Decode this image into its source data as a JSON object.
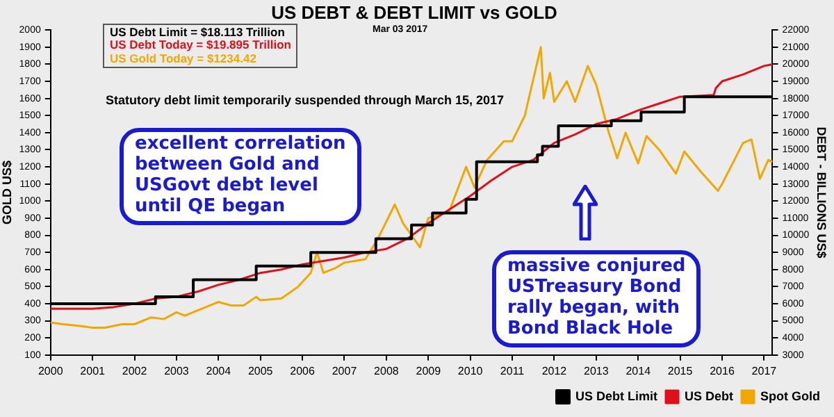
{
  "chart_data": {
    "type": "line",
    "title": "US DEBT & DEBT LIMIT vs GOLD",
    "ylabel": "GOLD US$",
    "y2label": "DEBT - BILLIONS US$",
    "xlim": [
      2000,
      2017.2
    ],
    "xticks": [
      2000,
      2001,
      2002,
      2003,
      2004,
      2005,
      2006,
      2007,
      2008,
      2009,
      2010,
      2011,
      2012,
      2013,
      2014,
      2015,
      2016,
      2017
    ],
    "ylim": [
      100,
      2000
    ],
    "yticks": [
      100,
      200,
      300,
      400,
      500,
      600,
      700,
      800,
      900,
      1000,
      1100,
      1200,
      1300,
      1400,
      1500,
      1600,
      1700,
      1800,
      1900,
      2000
    ],
    "y2lim": [
      3000,
      22000
    ],
    "y2ticks": [
      3000,
      4000,
      5000,
      6000,
      7000,
      8000,
      9000,
      10000,
      11000,
      12000,
      13000,
      14000,
      15000,
      16000,
      17000,
      18000,
      19000,
      20000,
      21000,
      22000
    ],
    "legend": "bottom right",
    "grid": false,
    "marker": "none",
    "series": [
      {
        "name": "US Debt Limit",
        "type": "step",
        "axis": "y2",
        "color": "#000000",
        "x": [
          2000,
          2002.5,
          2003.4,
          2004.9,
          2006.2,
          2007.75,
          2008.6,
          2009.1,
          2009.9,
          2010.15,
          2011.6,
          2011.72,
          2012.1,
          2013.36,
          2014.07,
          2015.1,
          2017.2
        ],
        "values": [
          6000,
          6400,
          7400,
          8200,
          9000,
          9800,
          10600,
          11300,
          12100,
          14300,
          14700,
          15200,
          16400,
          16700,
          17200,
          18100,
          18100
        ]
      },
      {
        "name": "US Debt",
        "axis": "y2",
        "color": "#e0101a",
        "x": [
          2000,
          2000.5,
          2001,
          2001.5,
          2002,
          2002.5,
          2003,
          2003.5,
          2004,
          2004.5,
          2005,
          2005.5,
          2006,
          2006.5,
          2007,
          2007.5,
          2008,
          2008.5,
          2009,
          2009.5,
          2010,
          2010.5,
          2011,
          2011.5,
          2012,
          2012.5,
          2013,
          2013.5,
          2014,
          2014.5,
          2015,
          2015.8,
          2015.85,
          2016,
          2016.5,
          2017,
          2017.2
        ],
        "values": [
          5700,
          5700,
          5700,
          5800,
          6000,
          6300,
          6400,
          6700,
          7100,
          7400,
          7800,
          8000,
          8300,
          8500,
          8700,
          9000,
          9200,
          9800,
          10700,
          11500,
          12300,
          13200,
          14000,
          14400,
          15400,
          15900,
          16500,
          16800,
          17300,
          17700,
          18100,
          18200,
          18600,
          19000,
          19400,
          19900,
          20000
        ]
      },
      {
        "name": "Spot Gold",
        "color": "#f0a800",
        "x": [
          2000,
          2000.3,
          2000.7,
          2001,
          2001.3,
          2001.7,
          2002,
          2002.4,
          2002.7,
          2003,
          2003.2,
          2003.7,
          2004,
          2004.3,
          2004.6,
          2004.9,
          2005,
          2005.5,
          2005.9,
          2006.2,
          2006.35,
          2006.5,
          2006.8,
          2007,
          2007.5,
          2007.8,
          2008.2,
          2008.4,
          2008.8,
          2009,
          2009.5,
          2009.9,
          2010.1,
          2010.4,
          2010.8,
          2011,
          2011.3,
          2011.68,
          2011.75,
          2011.9,
          2012,
          2012.3,
          2012.5,
          2012.8,
          2013,
          2013.3,
          2013.5,
          2013.7,
          2014,
          2014.2,
          2014.5,
          2014.9,
          2015.1,
          2015.5,
          2015.9,
          2016,
          2016.5,
          2016.7,
          2016.9,
          2017.1,
          2017.2
        ],
        "values": [
          290,
          280,
          270,
          260,
          260,
          280,
          280,
          320,
          310,
          350,
          330,
          380,
          410,
          390,
          390,
          440,
          420,
          430,
          500,
          580,
          700,
          580,
          610,
          640,
          660,
          780,
          980,
          870,
          730,
          900,
          940,
          1200,
          1080,
          1240,
          1350,
          1350,
          1500,
          1900,
          1600,
          1750,
          1580,
          1700,
          1580,
          1790,
          1680,
          1400,
          1250,
          1400,
          1220,
          1380,
          1300,
          1160,
          1290,
          1170,
          1060,
          1100,
          1340,
          1360,
          1130,
          1240,
          1230
        ]
      }
    ],
    "annotations": [
      "US Debt Limit    = $18.113 Trillion",
      "US Debt Today = $19.895 Trillion",
      "US Gold Today = $1234.42",
      "Mar 03  2017",
      "Statutory debt limit temporarily suspended through March  15, 2017",
      "excellent correlation\nbetween Gold and\nUSGovt debt level\n  until QE began",
      "massive conjured\nUSTreasury Bond\nrally began, with\nBond Black Hole"
    ]
  }
}
